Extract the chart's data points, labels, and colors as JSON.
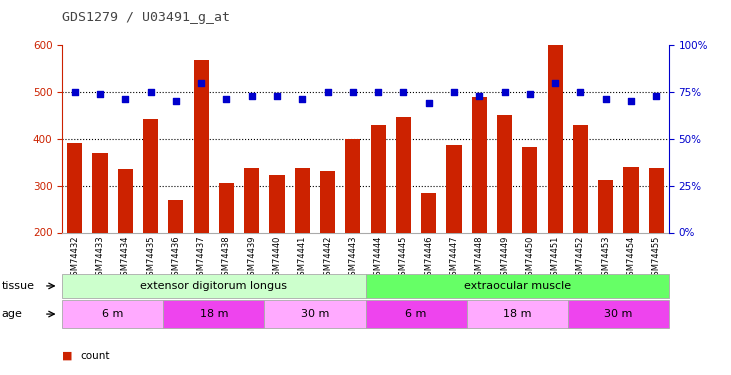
{
  "title": "GDS1279 / U03491_g_at",
  "samples": [
    "GSM74432",
    "GSM74433",
    "GSM74434",
    "GSM74435",
    "GSM74436",
    "GSM74437",
    "GSM74438",
    "GSM74439",
    "GSM74440",
    "GSM74441",
    "GSM74442",
    "GSM74443",
    "GSM74444",
    "GSM74445",
    "GSM74446",
    "GSM74447",
    "GSM74448",
    "GSM74449",
    "GSM74450",
    "GSM74451",
    "GSM74452",
    "GSM74453",
    "GSM74454",
    "GSM74455"
  ],
  "counts": [
    390,
    370,
    335,
    443,
    270,
    568,
    305,
    338,
    323,
    337,
    332,
    400,
    430,
    447,
    285,
    387,
    490,
    450,
    383,
    600,
    430,
    313,
    340,
    338
  ],
  "percentiles": [
    75,
    74,
    71,
    75,
    70,
    80,
    71,
    73,
    73,
    71,
    75,
    75,
    75,
    75,
    69,
    75,
    73,
    75,
    74,
    80,
    75,
    71,
    70,
    73
  ],
  "ylim_left": [
    200,
    600
  ],
  "ylim_right": [
    0,
    100
  ],
  "yticks_left": [
    200,
    300,
    400,
    500,
    600
  ],
  "yticks_right": [
    0,
    25,
    50,
    75,
    100
  ],
  "ytick_labels_right": [
    "0%",
    "25%",
    "50%",
    "75%",
    "100%"
  ],
  "bar_color": "#cc2200",
  "dot_color": "#0000cc",
  "bg_color": "#ffffff",
  "tissue_groups": [
    {
      "label": "extensor digitorum longus",
      "start": 0,
      "end": 12,
      "color": "#ccffcc"
    },
    {
      "label": "extraocular muscle",
      "start": 12,
      "end": 24,
      "color": "#66ff66"
    }
  ],
  "age_groups": [
    {
      "label": "6 m",
      "start": 0,
      "end": 4,
      "color": "#ffaaff"
    },
    {
      "label": "18 m",
      "start": 4,
      "end": 8,
      "color": "#ee44ee"
    },
    {
      "label": "30 m",
      "start": 8,
      "end": 12,
      "color": "#ffaaff"
    },
    {
      "label": "6 m",
      "start": 12,
      "end": 16,
      "color": "#ee44ee"
    },
    {
      "label": "18 m",
      "start": 16,
      "end": 20,
      "color": "#ffaaff"
    },
    {
      "label": "30 m",
      "start": 20,
      "end": 24,
      "color": "#ee44ee"
    }
  ],
  "left_axis_color": "#cc2200",
  "right_axis_color": "#0000cc",
  "title_color": "#444444",
  "grid_yticks": [
    300,
    400,
    500
  ]
}
